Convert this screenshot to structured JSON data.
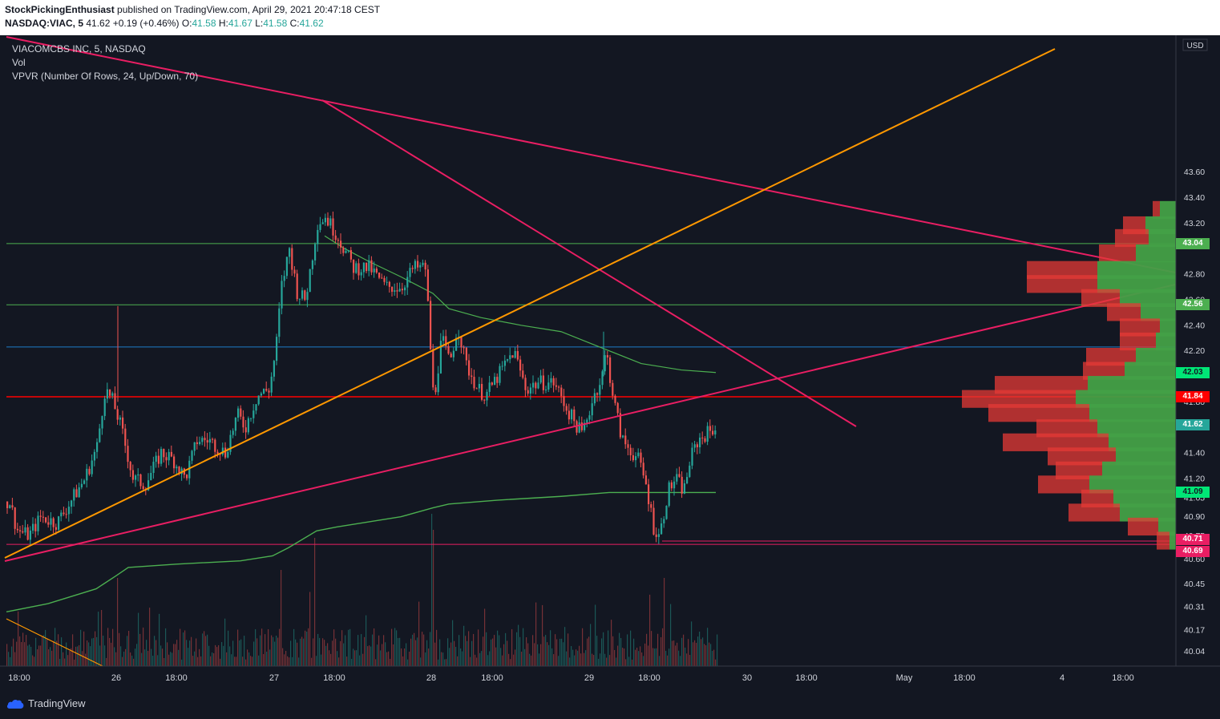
{
  "header": {
    "author": "StockPickingEnthusiast",
    "published_text": "published on TradingView.com, April 29, 2021 20:47:18 CEST",
    "symbol": "NASDAQ:VIAC, 5",
    "last": "41.62",
    "change": "+0.19 (+0.46%)",
    "o_label": "O:",
    "o": "41.58",
    "h_label": "H:",
    "h": "41.67",
    "l_label": "L:",
    "l": "41.58",
    "c_label": "C:",
    "c": "41.62"
  },
  "legend": {
    "title": "VIACOMCBS INC, 5, NASDAQ",
    "vol": "Vol",
    "vpvr": "VPVR (Number Of Rows, 24, Up/Down, 70)"
  },
  "axis": {
    "currency": "USD",
    "x_ticks": [
      "18:00",
      "26",
      "18:00",
      "27",
      "18:00",
      "28",
      "18:00",
      "29",
      "18:00",
      "30",
      "18:00",
      "May",
      "18:00",
      "4",
      "18:00"
    ]
  },
  "price_tags": [
    {
      "label": "43.04",
      "value": 43.04,
      "bg": "#4caf50",
      "fg": "#ffffff"
    },
    {
      "label": "42.56",
      "value": 42.56,
      "bg": "#4caf50",
      "fg": "#ffffff"
    },
    {
      "label": "42.03",
      "value": 42.03,
      "bg": "#00e676",
      "fg": "#131722"
    },
    {
      "label": "41.84",
      "value": 41.84,
      "bg": "#ff0000",
      "fg": "#ffffff"
    },
    {
      "label": "41.62",
      "value": 41.62,
      "bg": "#26a69a",
      "fg": "#ffffff"
    },
    {
      "label": "41.09",
      "value": 41.09,
      "bg": "#00e676",
      "fg": "#131722"
    },
    {
      "label": "40.71",
      "value": 40.71,
      "bg": "#e91e63",
      "fg": "#ffffff"
    },
    {
      "label": "40.69",
      "value": 40.69,
      "bg": "#e91e63",
      "fg": "#ffffff"
    }
  ],
  "branding": {
    "name": "TradingView"
  },
  "colors": {
    "background": "#131722",
    "up": "#26a69a",
    "down": "#ef5350",
    "trend_pink": "#e91e63",
    "trend_orange": "#ff9800",
    "support_red": "#ff0000",
    "level_green": "#4caf50",
    "level_blue": "#2196f3",
    "ma_green": "#4caf50"
  },
  "chart_data": {
    "type": "candlestick",
    "symbol": "NASDAQ:VIAC",
    "timeframe": "5",
    "ylim": [
      40.0,
      43.7
    ],
    "y_ticks": [
      43.6,
      43.4,
      43.2,
      42.8,
      42.6,
      42.4,
      42.2,
      41.8,
      41.4,
      41.2,
      41.05,
      40.9,
      40.75,
      40.6,
      40.45,
      40.31,
      40.17,
      40.04
    ],
    "y_tick_labels": [
      "43.60",
      "43.40",
      "43.20",
      "42.80",
      "42.60",
      "42.40",
      "42.20",
      "41.80",
      "41.40",
      "41.20",
      "41.05",
      "40.90",
      "40.75",
      "40.60",
      "40.45",
      "40.31",
      "40.17",
      "40.04"
    ],
    "horizontal_levels": [
      {
        "price": 43.04,
        "color": "green"
      },
      {
        "price": 42.56,
        "color": "green"
      },
      {
        "price": 42.23,
        "color": "blue"
      },
      {
        "price": 41.84,
        "color": "red"
      },
      {
        "price": 40.71,
        "color": "pink"
      },
      {
        "price": 40.69,
        "color": "pink"
      }
    ],
    "moving_averages": [
      {
        "last": 42.03
      },
      {
        "last": 41.09
      }
    ],
    "price_path": [
      [
        0,
        40.9
      ],
      [
        10,
        41.05
      ],
      [
        20,
        40.8
      ],
      [
        35,
        40.75
      ],
      [
        50,
        40.9
      ],
      [
        70,
        40.85
      ],
      [
        90,
        41.05
      ],
      [
        105,
        41.2
      ],
      [
        120,
        41.45
      ],
      [
        130,
        41.9
      ],
      [
        140,
        41.8
      ],
      [
        150,
        41.6
      ],
      [
        165,
        41.2
      ],
      [
        180,
        41.15
      ],
      [
        200,
        41.4
      ],
      [
        215,
        41.35
      ],
      [
        230,
        41.2
      ],
      [
        245,
        41.5
      ],
      [
        260,
        41.5
      ],
      [
        280,
        41.4
      ],
      [
        295,
        41.7
      ],
      [
        305,
        41.6
      ],
      [
        320,
        41.85
      ],
      [
        335,
        41.9
      ],
      [
        343,
        42.2
      ],
      [
        350,
        42.7
      ],
      [
        360,
        43.0
      ],
      [
        370,
        42.65
      ],
      [
        380,
        42.6
      ],
      [
        395,
        43.2
      ],
      [
        405,
        43.25
      ],
      [
        420,
        43.1
      ],
      [
        440,
        42.85
      ],
      [
        460,
        42.85
      ],
      [
        480,
        42.7
      ],
      [
        500,
        42.7
      ],
      [
        515,
        42.85
      ],
      [
        530,
        42.85
      ],
      [
        540,
        41.8
      ],
      [
        550,
        42.3
      ],
      [
        560,
        42.1
      ],
      [
        570,
        42.4
      ],
      [
        580,
        42.1
      ],
      [
        595,
        41.9
      ],
      [
        605,
        41.85
      ],
      [
        620,
        42.0
      ],
      [
        640,
        42.2
      ],
      [
        655,
        41.9
      ],
      [
        670,
        41.95
      ],
      [
        690,
        41.95
      ],
      [
        710,
        41.7
      ],
      [
        725,
        41.55
      ],
      [
        740,
        41.85
      ],
      [
        750,
        42.0
      ],
      [
        755,
        42.2
      ],
      [
        765,
        41.8
      ],
      [
        775,
        41.5
      ],
      [
        795,
        41.35
      ],
      [
        805,
        41.15
      ],
      [
        815,
        40.8
      ],
      [
        822,
        40.75
      ],
      [
        832,
        41.1
      ],
      [
        842,
        41.2
      ],
      [
        852,
        41.1
      ],
      [
        860,
        41.35
      ],
      [
        870,
        41.5
      ],
      [
        880,
        41.55
      ],
      [
        895,
        41.62
      ]
    ],
    "volume_profile": [
      {
        "price": 43.3,
        "down": 9,
        "up": 20
      },
      {
        "price": 43.18,
        "down": 28,
        "up": 38
      },
      {
        "price": 43.08,
        "down": 42,
        "up": 34
      },
      {
        "price": 42.96,
        "down": 46,
        "up": 50
      },
      {
        "price": 42.83,
        "down": 88,
        "up": 98
      },
      {
        "price": 42.72,
        "down": 88,
        "up": 98
      },
      {
        "price": 42.61,
        "down": 48,
        "up": 70
      },
      {
        "price": 42.5,
        "down": 42,
        "up": 44
      },
      {
        "price": 42.38,
        "down": 50,
        "up": 20
      },
      {
        "price": 42.27,
        "down": 45,
        "up": 25
      },
      {
        "price": 42.15,
        "down": 62,
        "up": 50
      },
      {
        "price": 42.04,
        "down": 52,
        "up": 64
      },
      {
        "price": 41.93,
        "down": 116,
        "up": 110
      },
      {
        "price": 41.82,
        "down": 142,
        "up": 125
      },
      {
        "price": 41.71,
        "down": 126,
        "up": 108
      },
      {
        "price": 41.59,
        "down": 76,
        "up": 98
      },
      {
        "price": 41.48,
        "down": 132,
        "up": 84
      },
      {
        "price": 41.37,
        "down": 85,
        "up": 75
      },
      {
        "price": 41.26,
        "down": 58,
        "up": 92
      },
      {
        "price": 41.15,
        "down": 64,
        "up": 108
      },
      {
        "price": 41.04,
        "down": 40,
        "up": 78
      },
      {
        "price": 40.93,
        "down": 64,
        "up": 70
      },
      {
        "price": 40.82,
        "down": 38,
        "up": 22
      },
      {
        "price": 40.71,
        "down": 16,
        "up": 8
      }
    ]
  }
}
